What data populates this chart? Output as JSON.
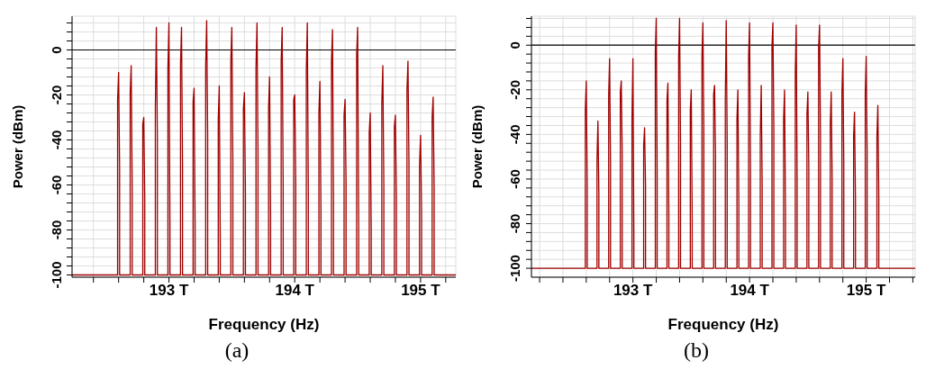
{
  "chart_data": [
    {
      "type": "line",
      "xlabel": "Frequency (Hz)",
      "ylabel": "Power (dBm)",
      "annotations": [
        "(a)"
      ],
      "grid": true,
      "marker": "none",
      "line_style": "solid",
      "xlim": [
        192.23,
        195.28
      ],
      "ylim": [
        -101,
        15
      ],
      "xticks": [
        {
          "value": 192.4,
          "label": null
        },
        {
          "value": 192.6,
          "label": null
        },
        {
          "value": 192.8,
          "label": null
        },
        {
          "value": 193,
          "label": "193 T"
        },
        {
          "value": 193.2,
          "label": null
        },
        {
          "value": 193.4,
          "label": null
        },
        {
          "value": 193.6,
          "label": null
        },
        {
          "value": 193.8,
          "label": null
        },
        {
          "value": 194,
          "label": "194 T"
        },
        {
          "value": 194.2,
          "label": null
        },
        {
          "value": 194.4,
          "label": null
        },
        {
          "value": 194.6,
          "label": null
        },
        {
          "value": 194.8,
          "label": null
        },
        {
          "value": 195,
          "label": "195 T"
        },
        {
          "value": 195.2,
          "label": null
        }
      ],
      "yticks": [
        -100,
        {
          "value": -96,
          "label": null
        },
        {
          "value": -92,
          "label": null
        },
        {
          "value": -88,
          "label": null
        },
        {
          "value": -84,
          "label": null
        },
        -80,
        {
          "value": -76,
          "label": null
        },
        {
          "value": -72,
          "label": null
        },
        {
          "value": -68,
          "label": null
        },
        {
          "value": -64,
          "label": null
        },
        -60,
        {
          "value": -56,
          "label": null
        },
        {
          "value": -52,
          "label": null
        },
        {
          "value": -48,
          "label": null
        },
        {
          "value": -44,
          "label": null
        },
        -40,
        {
          "value": -36,
          "label": null
        },
        {
          "value": -32,
          "label": null
        },
        {
          "value": -28,
          "label": null
        },
        {
          "value": -24,
          "label": null
        },
        -20,
        {
          "value": -16,
          "label": null
        },
        {
          "value": -12,
          "label": null
        },
        {
          "value": -8,
          "label": null
        },
        {
          "value": -4,
          "label": null
        },
        0,
        {
          "value": 4,
          "label": null
        },
        {
          "value": 8,
          "label": null
        },
        {
          "value": 12,
          "label": null
        }
      ],
      "ref_lines": [
        {
          "axis": "y",
          "value": 0,
          "color": "#000000"
        }
      ],
      "series": [
        {
          "color": "#a00000",
          "x": [
            192.23,
            192.592,
            192.592,
            192.6,
            192.608,
            192.608,
            192.692,
            192.692,
            192.7,
            192.708,
            192.708,
            192.792,
            192.792,
            192.8,
            192.808,
            192.808,
            192.892,
            192.892,
            192.9,
            192.908,
            192.908,
            192.992,
            192.992,
            193.0,
            193.008,
            193.008,
            193.092,
            193.092,
            193.1,
            193.108,
            193.108,
            193.192,
            193.192,
            193.2,
            193.208,
            193.208,
            193.292,
            193.292,
            193.3,
            193.308,
            193.308,
            193.392,
            193.392,
            193.4,
            193.408,
            193.408,
            193.492,
            193.492,
            193.5,
            193.508,
            193.508,
            193.592,
            193.592,
            193.6,
            193.608,
            193.608,
            193.692,
            193.692,
            193.7,
            193.708,
            193.708,
            193.792,
            193.792,
            193.8,
            193.808,
            193.808,
            193.892,
            193.892,
            193.9,
            193.908,
            193.908,
            193.992,
            193.992,
            194.0,
            194.008,
            194.008,
            194.092,
            194.092,
            194.1,
            194.108,
            194.108,
            194.192,
            194.192,
            194.2,
            194.208,
            194.208,
            194.292,
            194.292,
            194.3,
            194.308,
            194.308,
            194.392,
            194.392,
            194.4,
            194.408,
            194.408,
            194.492,
            194.492,
            194.5,
            194.508,
            194.508,
            194.592,
            194.592,
            194.6,
            194.608,
            194.608,
            194.692,
            194.692,
            194.7,
            194.708,
            194.708,
            194.792,
            194.792,
            194.8,
            194.808,
            194.808,
            194.892,
            194.892,
            194.9,
            194.908,
            194.908,
            194.992,
            194.992,
            195.0,
            195.008,
            195.008,
            195.092,
            195.092,
            195.1,
            195.108,
            195.108,
            195.28
          ],
          "values": [
            -100,
            -100,
            -22,
            -10,
            -53,
            -100,
            -100,
            -19,
            -7,
            -62,
            -100,
            -100,
            -33,
            -30,
            -66,
            -100,
            -100,
            -26,
            10,
            -38,
            -100,
            -100,
            -8,
            12,
            -78,
            -100,
            -100,
            -6,
            10,
            -52,
            -100,
            -100,
            -23,
            -17,
            -77,
            -100,
            -100,
            -7,
            13,
            -38,
            -100,
            -100,
            -31,
            -16,
            -85,
            -100,
            -100,
            -5,
            10,
            -49,
            -100,
            -100,
            -26,
            -19,
            -64,
            -100,
            -100,
            -8,
            12,
            -46,
            -100,
            -100,
            -26,
            -12,
            -73,
            -100,
            -100,
            -5,
            10,
            -61,
            -100,
            -100,
            -22,
            -20,
            -59,
            -100,
            -100,
            -9,
            12,
            -64,
            -100,
            -100,
            -28,
            -14,
            -69,
            -100,
            -100,
            -5,
            9,
            -68,
            -100,
            -100,
            -29,
            -22,
            -59,
            -100,
            -100,
            -2,
            10,
            -78,
            -100,
            -100,
            -37,
            -28,
            -81,
            -100,
            -100,
            -24,
            -7,
            -60,
            -100,
            -100,
            -34,
            -29,
            -66,
            -100,
            -100,
            -18,
            -5,
            -51,
            -100,
            -100,
            -51,
            -38,
            -72,
            -100,
            -100,
            -30,
            -21,
            -61,
            -100,
            -100
          ]
        }
      ]
    },
    {
      "type": "line",
      "xlabel": "Frequency (Hz)",
      "ylabel": "Power (dBm)",
      "annotations": [
        "(b)"
      ],
      "grid": true,
      "marker": "none",
      "line_style": "solid",
      "xlim": [
        192.13,
        195.42
      ],
      "ylim": [
        -104,
        13
      ],
      "xticks": [
        {
          "value": 192.2,
          "label": null
        },
        {
          "value": 192.4,
          "label": null
        },
        {
          "value": 192.6,
          "label": null
        },
        {
          "value": 192.8,
          "label": null
        },
        {
          "value": 193,
          "label": "193 T"
        },
        {
          "value": 193.2,
          "label": null
        },
        {
          "value": 193.4,
          "label": null
        },
        {
          "value": 193.6,
          "label": null
        },
        {
          "value": 193.8,
          "label": null
        },
        {
          "value": 194,
          "label": "194 T"
        },
        {
          "value": 194.2,
          "label": null
        },
        {
          "value": 194.4,
          "label": null
        },
        {
          "value": 194.6,
          "label": null
        },
        {
          "value": 194.8,
          "label": null
        },
        {
          "value": 195,
          "label": "195 T"
        },
        {
          "value": 195.2,
          "label": null
        },
        {
          "value": 195.4,
          "label": null
        }
      ],
      "yticks": [
        -100,
        {
          "value": -96,
          "label": null
        },
        {
          "value": -92,
          "label": null
        },
        {
          "value": -88,
          "label": null
        },
        {
          "value": -84,
          "label": null
        },
        -80,
        {
          "value": -76,
          "label": null
        },
        {
          "value": -72,
          "label": null
        },
        {
          "value": -68,
          "label": null
        },
        {
          "value": -64,
          "label": null
        },
        -60,
        {
          "value": -56,
          "label": null
        },
        {
          "value": -52,
          "label": null
        },
        {
          "value": -48,
          "label": null
        },
        {
          "value": -44,
          "label": null
        },
        -40,
        {
          "value": -36,
          "label": null
        },
        {
          "value": -32,
          "label": null
        },
        {
          "value": -28,
          "label": null
        },
        {
          "value": -24,
          "label": null
        },
        -20,
        {
          "value": -16,
          "label": null
        },
        {
          "value": -12,
          "label": null
        },
        {
          "value": -8,
          "label": null
        },
        {
          "value": -4,
          "label": null
        },
        0,
        {
          "value": 4,
          "label": null
        },
        {
          "value": 8,
          "label": null
        },
        {
          "value": 12,
          "label": null
        }
      ],
      "ref_lines": [
        {
          "axis": "y",
          "value": 0,
          "color": "#000000"
        }
      ],
      "series": [
        {
          "color": "#a00000",
          "x": [
            192.13,
            192.592,
            192.592,
            192.6,
            192.608,
            192.608,
            192.692,
            192.692,
            192.7,
            192.708,
            192.708,
            192.792,
            192.792,
            192.8,
            192.808,
            192.808,
            192.892,
            192.892,
            192.9,
            192.908,
            192.908,
            192.992,
            192.992,
            193.0,
            193.008,
            193.008,
            193.092,
            193.092,
            193.1,
            193.108,
            193.108,
            193.192,
            193.192,
            193.2,
            193.208,
            193.208,
            193.292,
            193.292,
            193.3,
            193.308,
            193.308,
            193.392,
            193.392,
            193.4,
            193.408,
            193.408,
            193.492,
            193.492,
            193.5,
            193.508,
            193.508,
            193.592,
            193.592,
            193.6,
            193.608,
            193.608,
            193.692,
            193.692,
            193.7,
            193.708,
            193.708,
            193.792,
            193.792,
            193.8,
            193.808,
            193.808,
            193.892,
            193.892,
            193.9,
            193.908,
            193.908,
            193.992,
            193.992,
            194.0,
            194.008,
            194.008,
            194.092,
            194.092,
            194.1,
            194.108,
            194.108,
            194.192,
            194.192,
            194.2,
            194.208,
            194.208,
            194.292,
            194.292,
            194.3,
            194.308,
            194.308,
            194.392,
            194.392,
            194.4,
            194.408,
            194.408,
            194.492,
            194.492,
            194.5,
            194.508,
            194.508,
            194.592,
            194.592,
            194.6,
            194.608,
            194.608,
            194.692,
            194.692,
            194.7,
            194.708,
            194.708,
            194.792,
            194.792,
            194.8,
            194.808,
            194.808,
            194.892,
            194.892,
            194.9,
            194.908,
            194.908,
            194.992,
            194.992,
            195.0,
            195.008,
            195.008,
            195.092,
            195.092,
            195.1,
            195.108,
            195.108,
            195.42
          ],
          "values": [
            -100,
            -100,
            -29,
            -16,
            -62,
            -100,
            -100,
            -52,
            -34,
            -67,
            -100,
            -100,
            -23,
            -6,
            -54,
            -100,
            -100,
            -21,
            -16,
            -49,
            -100,
            -100,
            -33,
            -6,
            -86,
            -100,
            -100,
            -45,
            -37,
            -63,
            -100,
            -100,
            -3,
            12,
            -58,
            -100,
            -100,
            -25,
            -17,
            -77,
            -100,
            -100,
            -5,
            12,
            -43,
            -100,
            -100,
            -29,
            -20,
            -78,
            -100,
            -100,
            -5,
            10,
            -39,
            -100,
            -100,
            -22,
            -18,
            -49,
            -100,
            -100,
            -25,
            11,
            -43,
            -100,
            -100,
            -33,
            -20,
            -72,
            -100,
            -100,
            -5,
            10,
            -56,
            -100,
            -100,
            -41,
            -18,
            -62,
            -100,
            -100,
            -1,
            10,
            -37,
            -100,
            -100,
            -33,
            -20,
            -75,
            -100,
            -100,
            -13,
            9,
            -62,
            -100,
            -100,
            -31,
            -21,
            -55,
            -100,
            -100,
            -1,
            9,
            -41,
            -100,
            -100,
            -36,
            -21,
            -60,
            -100,
            -100,
            -22,
            -6,
            -53,
            -100,
            -100,
            -41,
            -30,
            -69,
            -100,
            -100,
            -22,
            -5,
            -48,
            -100,
            -100,
            -41,
            -27,
            -68,
            -100,
            -100
          ]
        }
      ]
    }
  ]
}
